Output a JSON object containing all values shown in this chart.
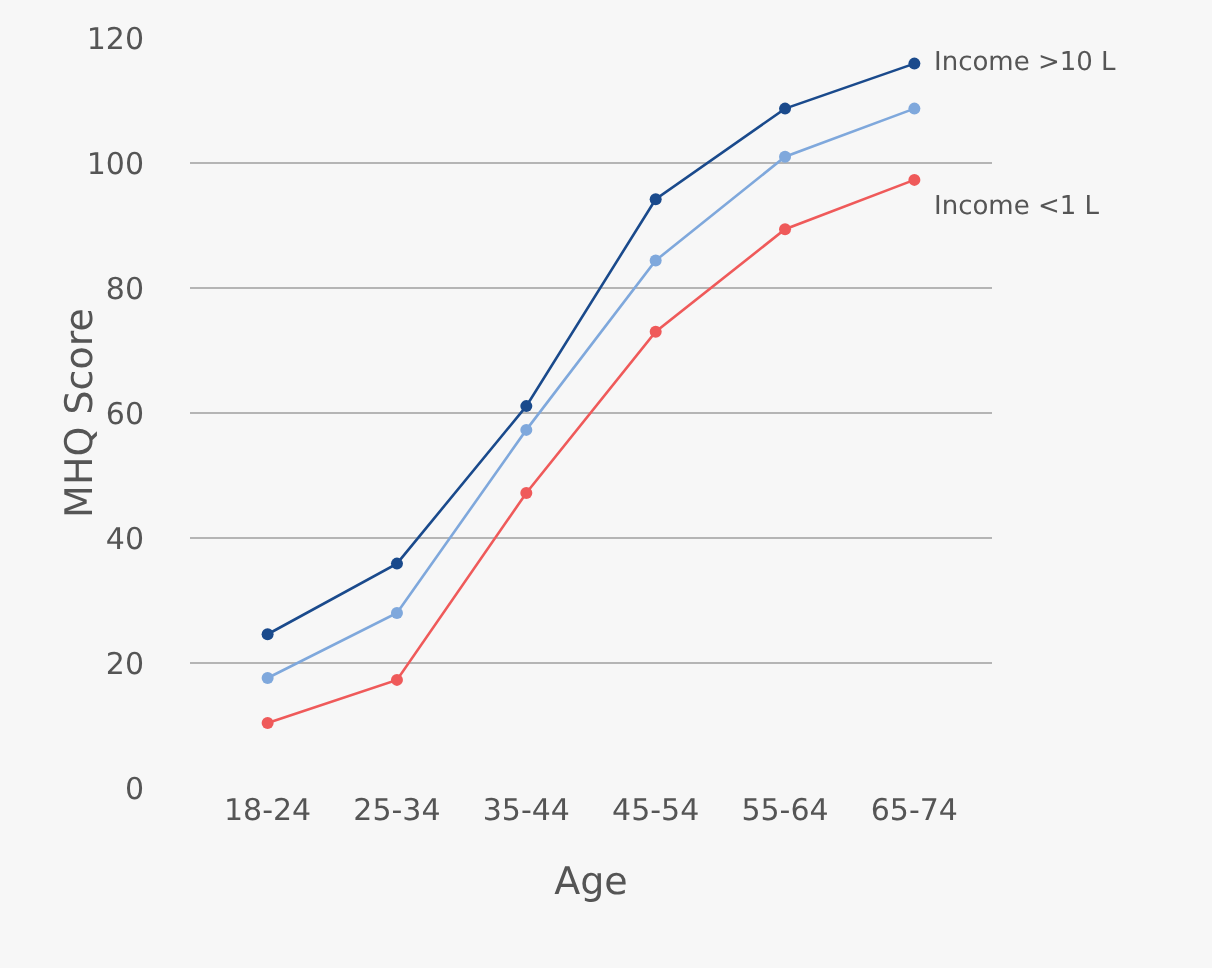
{
  "chart_data": {
    "type": "line",
    "xlabel": "Age",
    "ylabel": "MHQ Score",
    "categories": [
      "18-24",
      "25-34",
      "35-44",
      "45-54",
      "55-64",
      "65-74"
    ],
    "series": [
      {
        "name": "Income >10 L",
        "color": "#1a4a8c",
        "values": [
          24.6,
          35.9,
          61.1,
          94.2,
          108.7,
          115.9
        ]
      },
      {
        "color": "#7fa8dc",
        "values": [
          17.6,
          28,
          57.3,
          84.4,
          101,
          108.7
        ]
      },
      {
        "name": "Income <1 L",
        "color": "#ef5a5a",
        "values": [
          10.4,
          17.3,
          47.2,
          73,
          89.4,
          97.3
        ]
      }
    ],
    "ylim": [
      0,
      120
    ],
    "yticks": [
      0,
      20,
      40,
      60,
      80,
      100,
      120
    ],
    "grid": "y",
    "legend": false,
    "marker": "circle",
    "line_style": "solid"
  }
}
